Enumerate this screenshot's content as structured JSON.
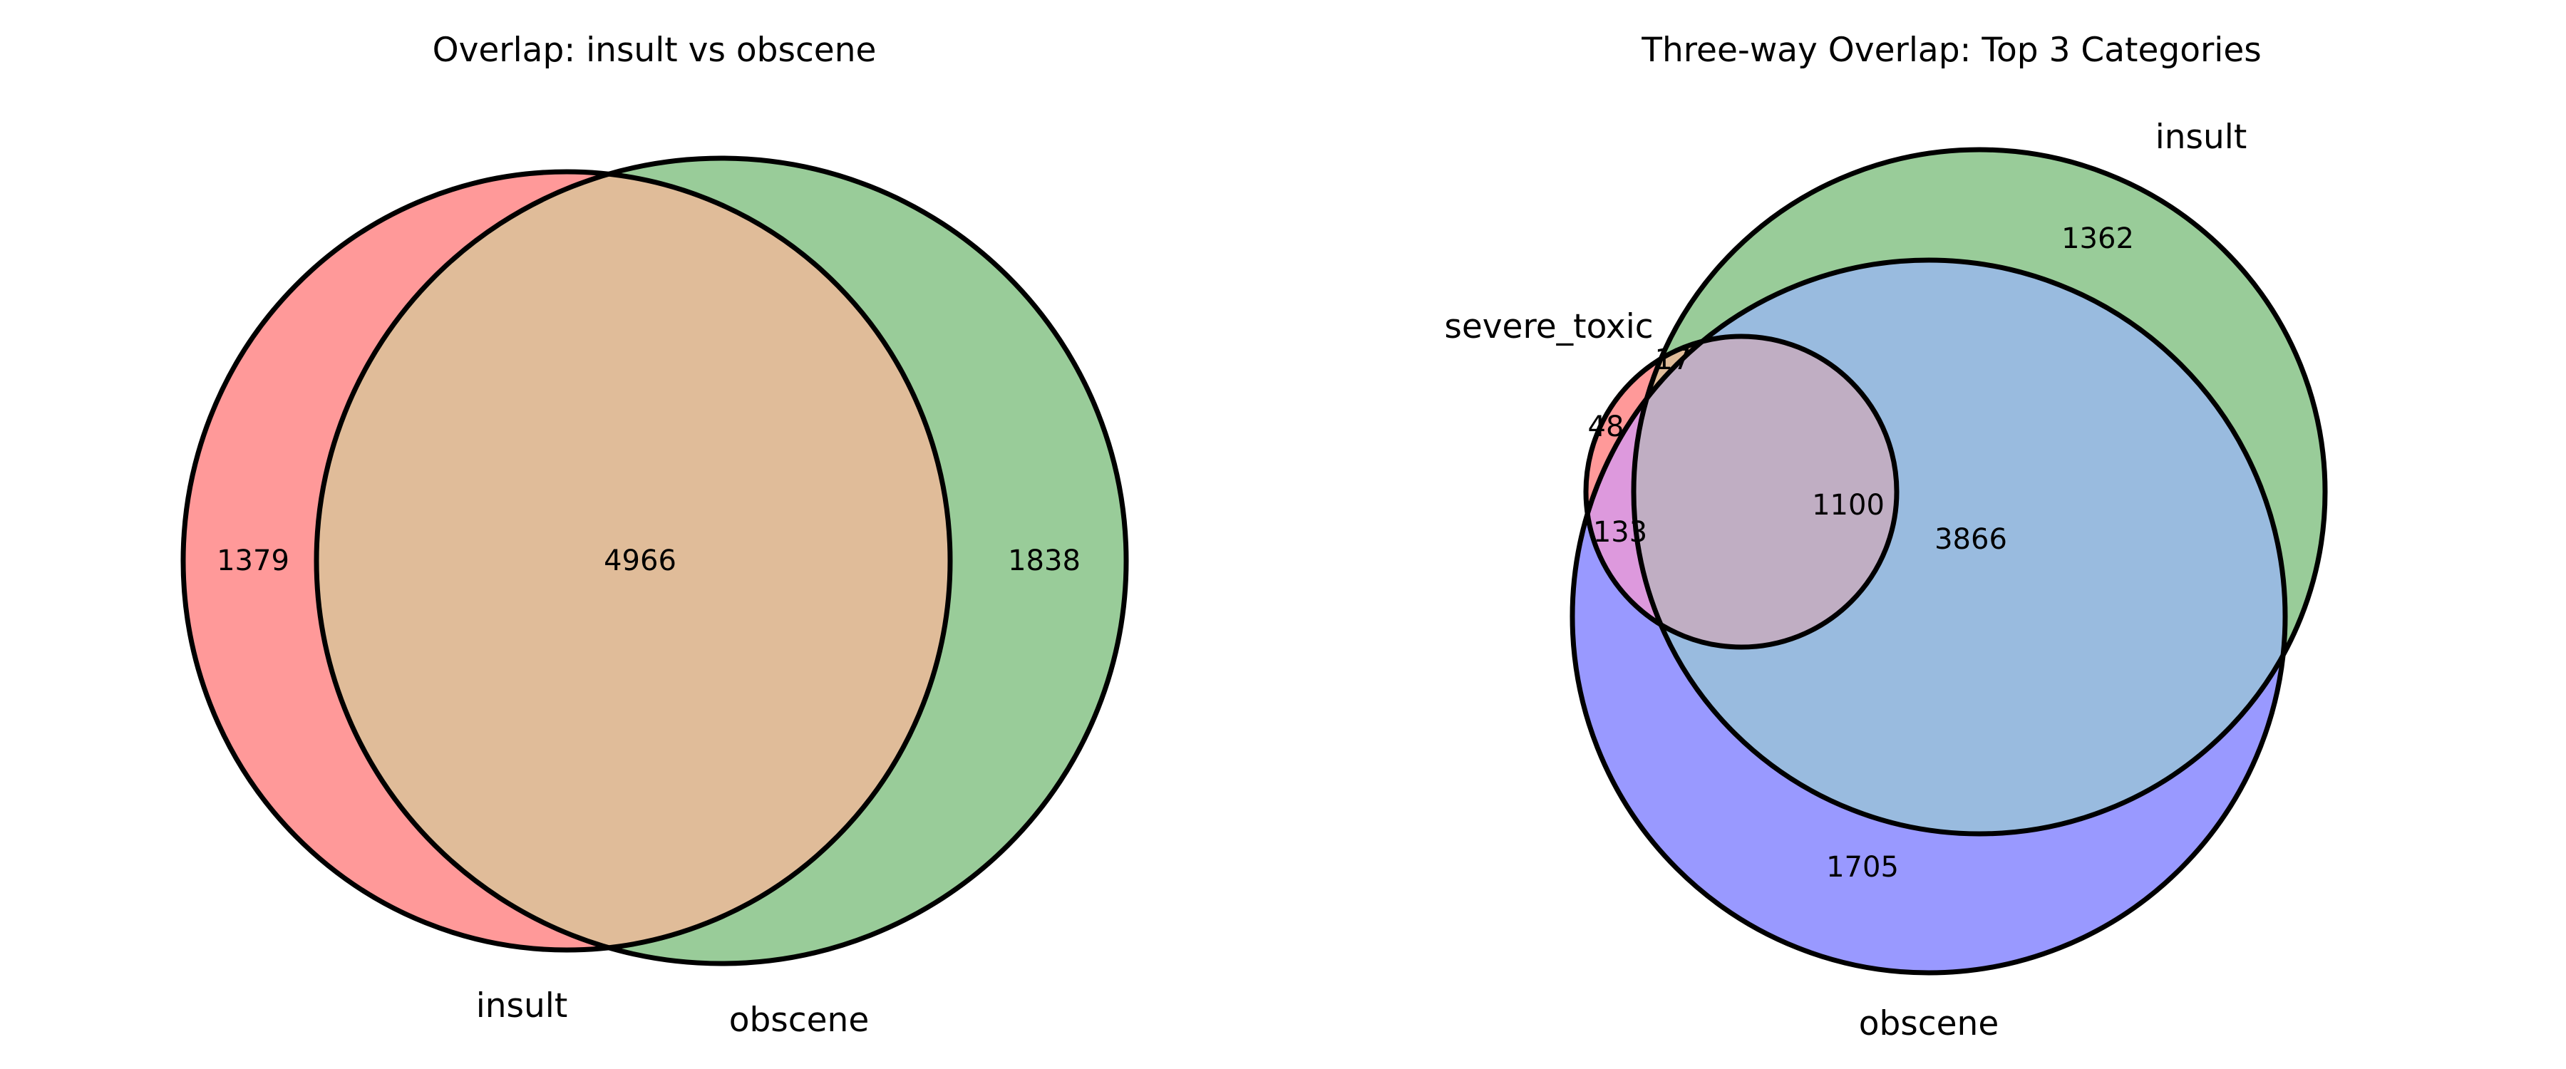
{
  "figure": {
    "left_panel": {
      "title": "Overlap: insult vs obscene",
      "set_labels": {
        "a": "insult",
        "b": "obscene"
      },
      "counts": {
        "a_only": "1379",
        "both": "4966",
        "b_only": "1838"
      }
    },
    "right_panel": {
      "title": "Three-way Overlap: Top 3 Categories",
      "set_labels": {
        "severe_toxic": "severe_toxic",
        "insult": "insult",
        "obscene": "obscene"
      },
      "counts": {
        "severe_toxic_only": "48",
        "severe_toxic_insult_only": "17",
        "severe_toxic_obscene_only": "133",
        "all_three": "1100",
        "insult_obscene_only": "3866",
        "insult_only": "1362",
        "obscene_only": "1705"
      }
    }
  },
  "chart_data": [
    {
      "type": "venn2",
      "title": "Overlap: insult vs obscene",
      "sets": [
        "insult",
        "obscene"
      ],
      "regions": {
        "insult_only": 1379,
        "insult&obscene": 4966,
        "obscene_only": 1838
      },
      "colors": {
        "insult": "#ff9999",
        "obscene": "#99cc99",
        "overlap": "#e0bc99"
      }
    },
    {
      "type": "venn3",
      "title": "Three-way Overlap: Top 3 Categories",
      "sets": [
        "severe_toxic",
        "insult",
        "obscene"
      ],
      "regions": {
        "severe_toxic_only": 48,
        "severe_toxic&insult_only": 17,
        "severe_toxic&obscene_only": 133,
        "severe_toxic&insult&obscene": 1100,
        "insult&obscene_only": 3866,
        "insult_only": 1362,
        "obscene_only": 1705
      },
      "colors": {
        "severe_toxic": "#ff9999",
        "insult": "#99cc99",
        "obscene": "#9999ff",
        "insult&obscene": "#99bbdf",
        "severe_toxic&obscene": "#dd99dd",
        "all_three": "#c0aec3"
      }
    }
  ]
}
